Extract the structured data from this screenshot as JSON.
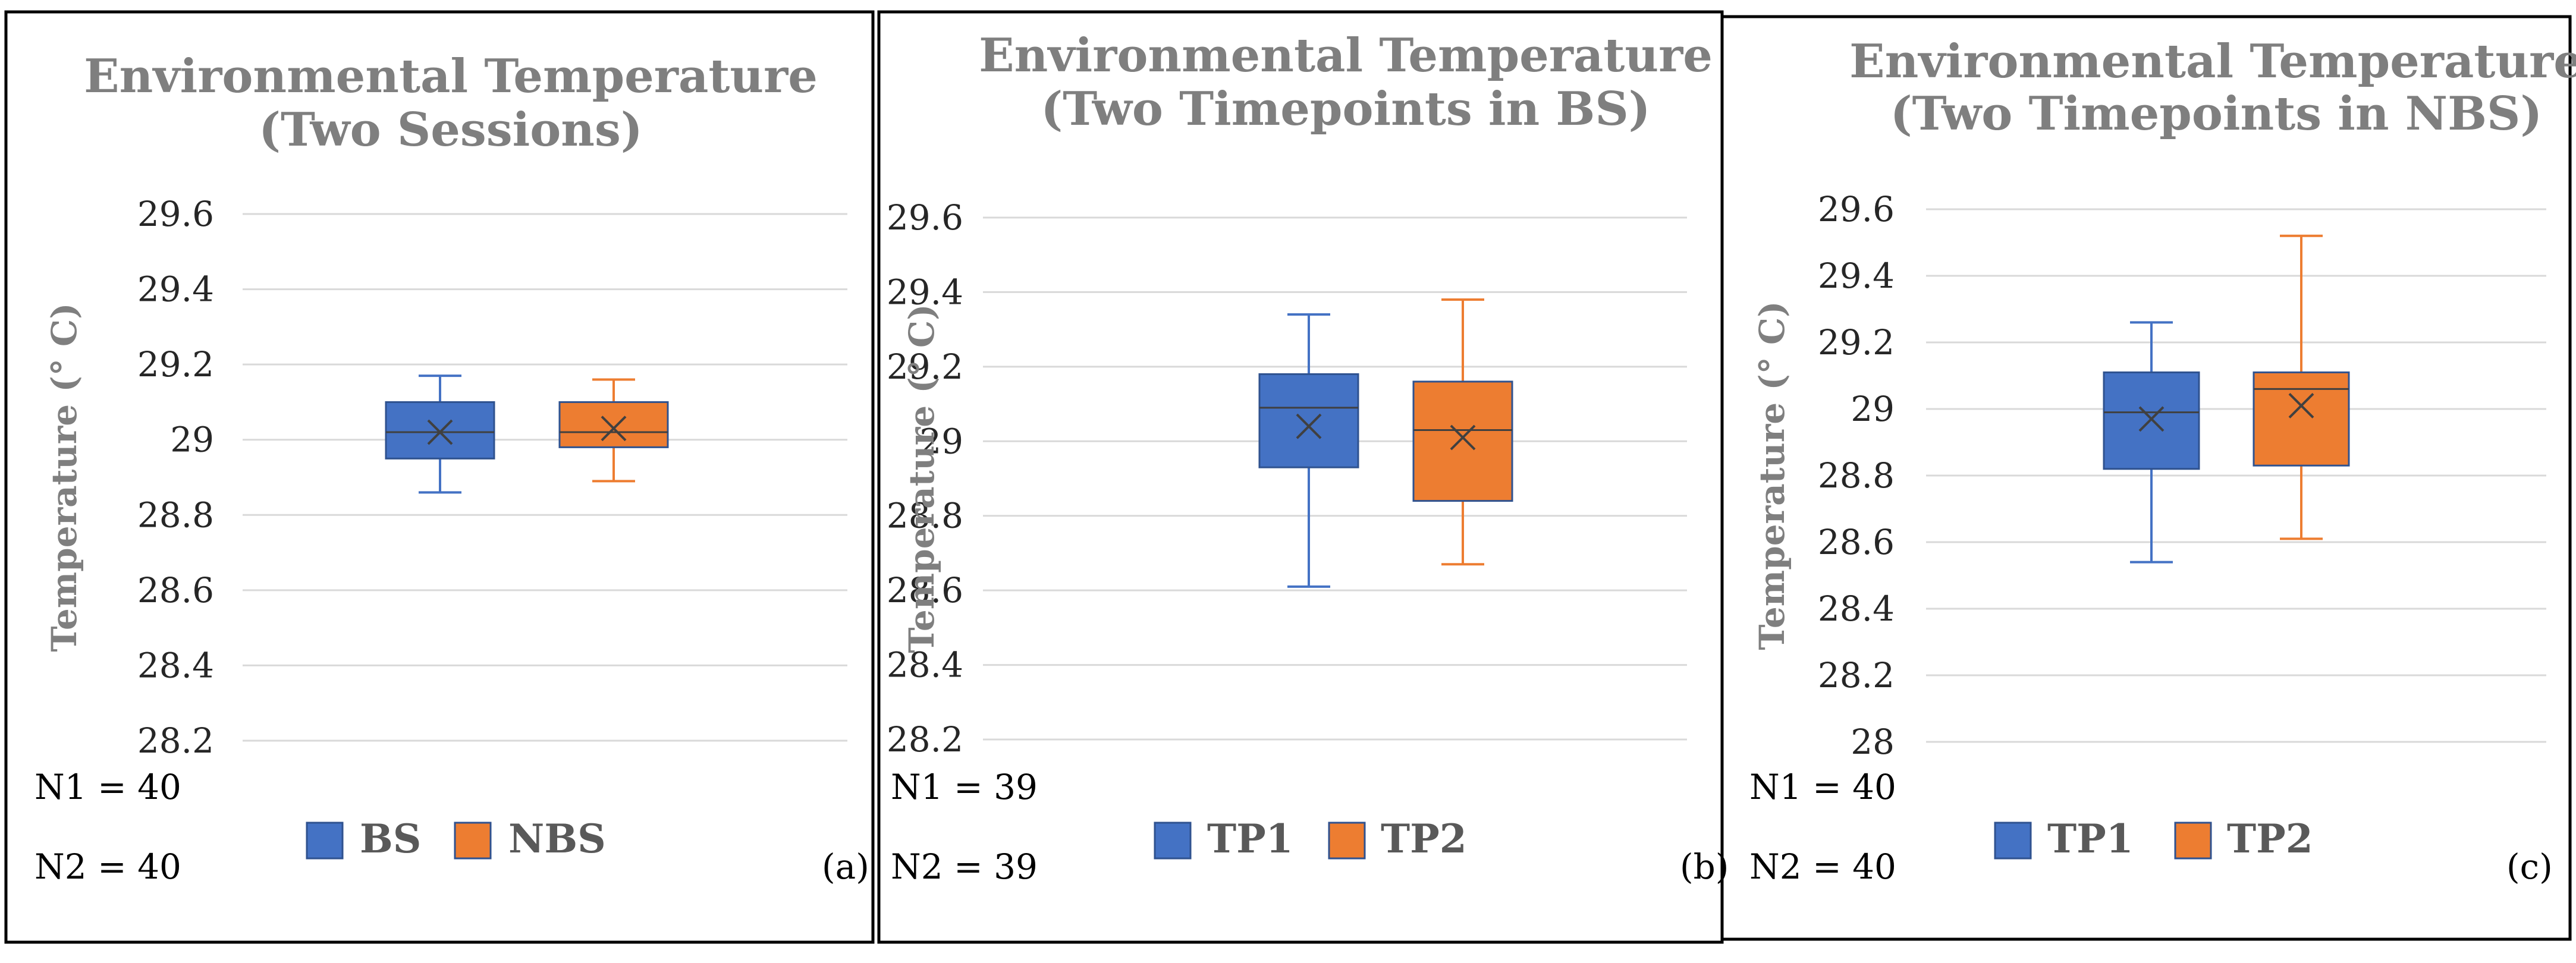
{
  "panels": [
    {
      "tag": "(a)",
      "n_labels": [
        "N1 = 40",
        "N2 = 40"
      ],
      "chart": {
        "type": "box",
        "title_lines": [
          "Environmental Temperature",
          "(Two Sessions)"
        ],
        "ylabel": "Temperature (° C)",
        "ylim": [
          28.2,
          29.6
        ],
        "yticks": [
          "28.2",
          "28.4",
          "28.6",
          "28.8",
          "29",
          "29.2",
          "29.4",
          "29.6"
        ],
        "grid": true,
        "legend_position": "bottom",
        "series": [
          {
            "name": "BS",
            "color": "#4472c4",
            "min": 28.86,
            "q1": 28.95,
            "median": 29.02,
            "q3": 29.1,
            "max": 29.17,
            "mean": 29.02
          },
          {
            "name": "NBS",
            "color": "#ed7d31",
            "min": 28.89,
            "q1": 28.98,
            "median": 29.02,
            "q3": 29.1,
            "max": 29.16,
            "mean": 29.03
          }
        ]
      }
    },
    {
      "tag": "(b)",
      "n_labels": [
        "N1 = 39",
        "N2 = 39"
      ],
      "chart": {
        "type": "box",
        "title_lines": [
          "Environmental Temperature",
          "(Two Timepoints in BS)"
        ],
        "ylabel": "Temperature (° C)",
        "ylim": [
          28.2,
          29.6
        ],
        "yticks": [
          "28.2",
          "28.4",
          "28.6",
          "28.8",
          "29",
          "29.2",
          "29.4",
          "29.6"
        ],
        "grid": true,
        "legend_position": "bottom",
        "series": [
          {
            "name": "TP1",
            "color": "#4472c4",
            "min": 28.61,
            "q1": 28.93,
            "median": 29.09,
            "q3": 29.18,
            "max": 29.34,
            "mean": 29.04
          },
          {
            "name": "TP2",
            "color": "#ed7d31",
            "min": 28.67,
            "q1": 28.84,
            "median": 29.03,
            "q3": 29.16,
            "max": 29.38,
            "mean": 29.01
          }
        ]
      }
    },
    {
      "tag": "(c)",
      "n_labels": [
        "N1 = 40",
        "N2 = 40"
      ],
      "chart": {
        "type": "box",
        "title_lines": [
          "Environmental Temperature",
          "(Two Timepoints in NBS)"
        ],
        "ylabel": "Temperature (° C)",
        "ylim": [
          28.0,
          29.6
        ],
        "yticks": [
          "28",
          "28.2",
          "28.4",
          "28.6",
          "28.8",
          "29",
          "29.2",
          "29.4",
          "29.6"
        ],
        "grid": true,
        "legend_position": "bottom",
        "series": [
          {
            "name": "TP1",
            "color": "#4472c4",
            "min": 28.54,
            "q1": 28.82,
            "median": 28.99,
            "q3": 29.11,
            "max": 29.26,
            "mean": 28.97
          },
          {
            "name": "TP2",
            "color": "#ed7d31",
            "min": 28.61,
            "q1": 28.83,
            "median": 29.06,
            "q3": 29.11,
            "max": 29.52,
            "mean": 29.01
          }
        ]
      }
    }
  ]
}
